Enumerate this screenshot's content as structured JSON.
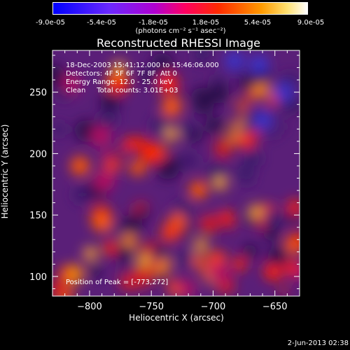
{
  "colorbar": {
    "ticks": [
      "-9.0e-05",
      "-5.4e-05",
      "-1.8e-05",
      "1.8e-05",
      "5.4e-05",
      "9.0e-05"
    ],
    "unit": "(photons cm⁻² s⁻¹ asec⁻²)",
    "colors": [
      "#0000ff",
      "#7a2cff",
      "#ff00aa",
      "#ff2a00",
      "#ffa000",
      "#ffffff"
    ]
  },
  "chart_data": {
    "type": "heatmap",
    "title": "Reconstructed RHESSI Image",
    "xlabel": "Heliocentric X (arcsec)",
    "ylabel": "Heliocentric Y (arcsec)",
    "xlim": [
      -830,
      -630
    ],
    "ylim": [
      84,
      284
    ],
    "xticks": [
      -800,
      -750,
      -700,
      -650
    ],
    "yticks": [
      100,
      150,
      200,
      250
    ],
    "value_range": [
      -9e-05,
      9e-05
    ],
    "peak_position": [
      -773,
      272
    ],
    "annotations": [
      "18-Dec-2003 15:41:12.000 to 15:46:06.000",
      "Detectors: 4F 5F 6F 7F 8F, Att 0",
      "Energy Range: 12.0 - 25.0 keV",
      "Clean     Total counts: 3.01E+03",
      "Position of Peak = [-773,272]"
    ]
  },
  "date_stamp": "2-Jun-2013 02:38"
}
